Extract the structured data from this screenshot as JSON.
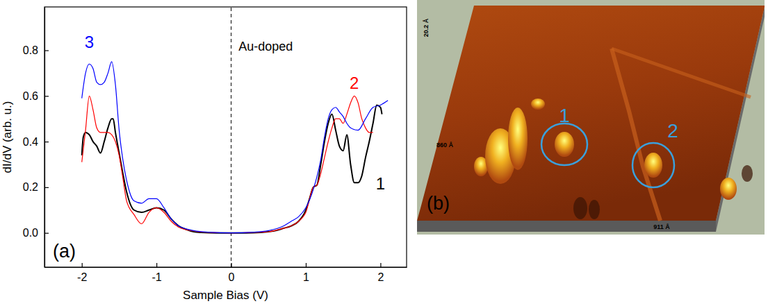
{
  "chart_data": {
    "type": "line",
    "panel_label": "(a)",
    "xlabel": "Sample Bias (V)",
    "ylabel": "dI/dV (arb. u.)",
    "xlim": [
      -2.5,
      2.35
    ],
    "xticks": [
      -2,
      -1,
      0,
      1,
      2
    ],
    "ylim": [
      -0.15,
      0.99
    ],
    "yticks": [
      {
        "value": 0,
        "label": "0.0"
      },
      0.2,
      0.4,
      0.6,
      0.8
    ],
    "vline": 0,
    "annotations": [
      {
        "text": "Au-doped",
        "x": 0.1,
        "y": 0.8
      }
    ],
    "series": [
      {
        "name": "1",
        "color": "#000000",
        "label_position": [
          2.0,
          0.19
        ],
        "x": [
          -2.0,
          -1.98,
          -1.95,
          -1.9,
          -1.85,
          -1.8,
          -1.75,
          -1.7,
          -1.65,
          -1.6,
          -1.58,
          -1.55,
          -1.5,
          -1.45,
          -1.4,
          -1.3,
          -1.2,
          -1.1,
          -1.0,
          -0.9,
          -0.8,
          -0.7,
          -0.6,
          -0.5,
          -0.4,
          -0.2,
          0.0,
          0.2,
          0.4,
          0.5,
          0.6,
          0.7,
          0.8,
          0.9,
          1.0,
          1.05,
          1.1,
          1.15,
          1.2,
          1.25,
          1.3,
          1.35,
          1.4,
          1.45,
          1.5,
          1.55,
          1.6,
          1.65,
          1.7,
          1.75,
          1.8,
          1.85,
          1.9,
          1.95,
          2.0,
          2.02
        ],
        "values": [
          0.34,
          0.42,
          0.44,
          0.43,
          0.4,
          0.38,
          0.35,
          0.4,
          0.46,
          0.5,
          0.5,
          0.44,
          0.35,
          0.26,
          0.18,
          0.1,
          0.09,
          0.1,
          0.11,
          0.1,
          0.06,
          0.03,
          0.015,
          0.005,
          0.002,
          0.0,
          0.0,
          0.0,
          0.002,
          0.005,
          0.01,
          0.02,
          0.03,
          0.05,
          0.1,
          0.15,
          0.2,
          0.21,
          0.3,
          0.4,
          0.48,
          0.52,
          0.45,
          0.38,
          0.36,
          0.43,
          0.3,
          0.22,
          0.22,
          0.25,
          0.33,
          0.4,
          0.48,
          0.56,
          0.55,
          0.52
        ]
      },
      {
        "name": "2",
        "color": "#ff0000",
        "label_position": [
          1.65,
          0.63
        ],
        "x": [
          -2.0,
          -1.95,
          -1.9,
          -1.85,
          -1.8,
          -1.75,
          -1.7,
          -1.65,
          -1.6,
          -1.55,
          -1.5,
          -1.45,
          -1.4,
          -1.3,
          -1.2,
          -1.1,
          -1.0,
          -0.9,
          -0.8,
          -0.7,
          -0.5,
          -0.3,
          0.0,
          0.3,
          0.5,
          0.7,
          0.8,
          0.9,
          1.0,
          1.1,
          1.15,
          1.2,
          1.25,
          1.3,
          1.35,
          1.4,
          1.45,
          1.5,
          1.55,
          1.6,
          1.65,
          1.7,
          1.75,
          1.8,
          1.85,
          1.9
        ],
        "values": [
          0.31,
          0.45,
          0.6,
          0.54,
          0.46,
          0.44,
          0.44,
          0.44,
          0.43,
          0.4,
          0.34,
          0.24,
          0.14,
          0.08,
          0.04,
          0.09,
          0.11,
          0.09,
          0.05,
          0.025,
          0.008,
          0.002,
          0.0,
          0.002,
          0.005,
          0.02,
          0.03,
          0.05,
          0.09,
          0.2,
          0.21,
          0.26,
          0.33,
          0.4,
          0.46,
          0.5,
          0.5,
          0.48,
          0.52,
          0.57,
          0.6,
          0.57,
          0.5,
          0.46,
          0.44,
          0.44
        ]
      },
      {
        "name": "3",
        "color": "#0000ff",
        "label_position": [
          -1.9,
          0.81
        ],
        "x": [
          -2.0,
          -1.95,
          -1.9,
          -1.85,
          -1.8,
          -1.75,
          -1.7,
          -1.65,
          -1.6,
          -1.55,
          -1.5,
          -1.45,
          -1.4,
          -1.3,
          -1.2,
          -1.1,
          -1.0,
          -0.9,
          -0.8,
          -0.7,
          -0.5,
          -0.3,
          0.0,
          0.3,
          0.5,
          0.7,
          0.8,
          0.9,
          1.0,
          1.1,
          1.2,
          1.25,
          1.3,
          1.35,
          1.4,
          1.45,
          1.5,
          1.55,
          1.6,
          1.7,
          1.8,
          1.9,
          2.0,
          2.1
        ],
        "values": [
          0.59,
          0.7,
          0.74,
          0.72,
          0.66,
          0.65,
          0.66,
          0.7,
          0.75,
          0.65,
          0.45,
          0.32,
          0.23,
          0.14,
          0.13,
          0.15,
          0.15,
          0.11,
          0.06,
          0.03,
          0.01,
          0.003,
          0.0,
          0.003,
          0.01,
          0.03,
          0.05,
          0.07,
          0.11,
          0.19,
          0.32,
          0.42,
          0.5,
          0.54,
          0.55,
          0.53,
          0.51,
          0.48,
          0.46,
          0.45,
          0.5,
          0.55,
          0.56,
          0.58
        ]
      }
    ]
  },
  "image": {
    "panel_label": "(b)",
    "markers": [
      "1",
      "2"
    ],
    "scale_labels": [
      "20.2 Å",
      "860 Å",
      "911 Å"
    ]
  }
}
